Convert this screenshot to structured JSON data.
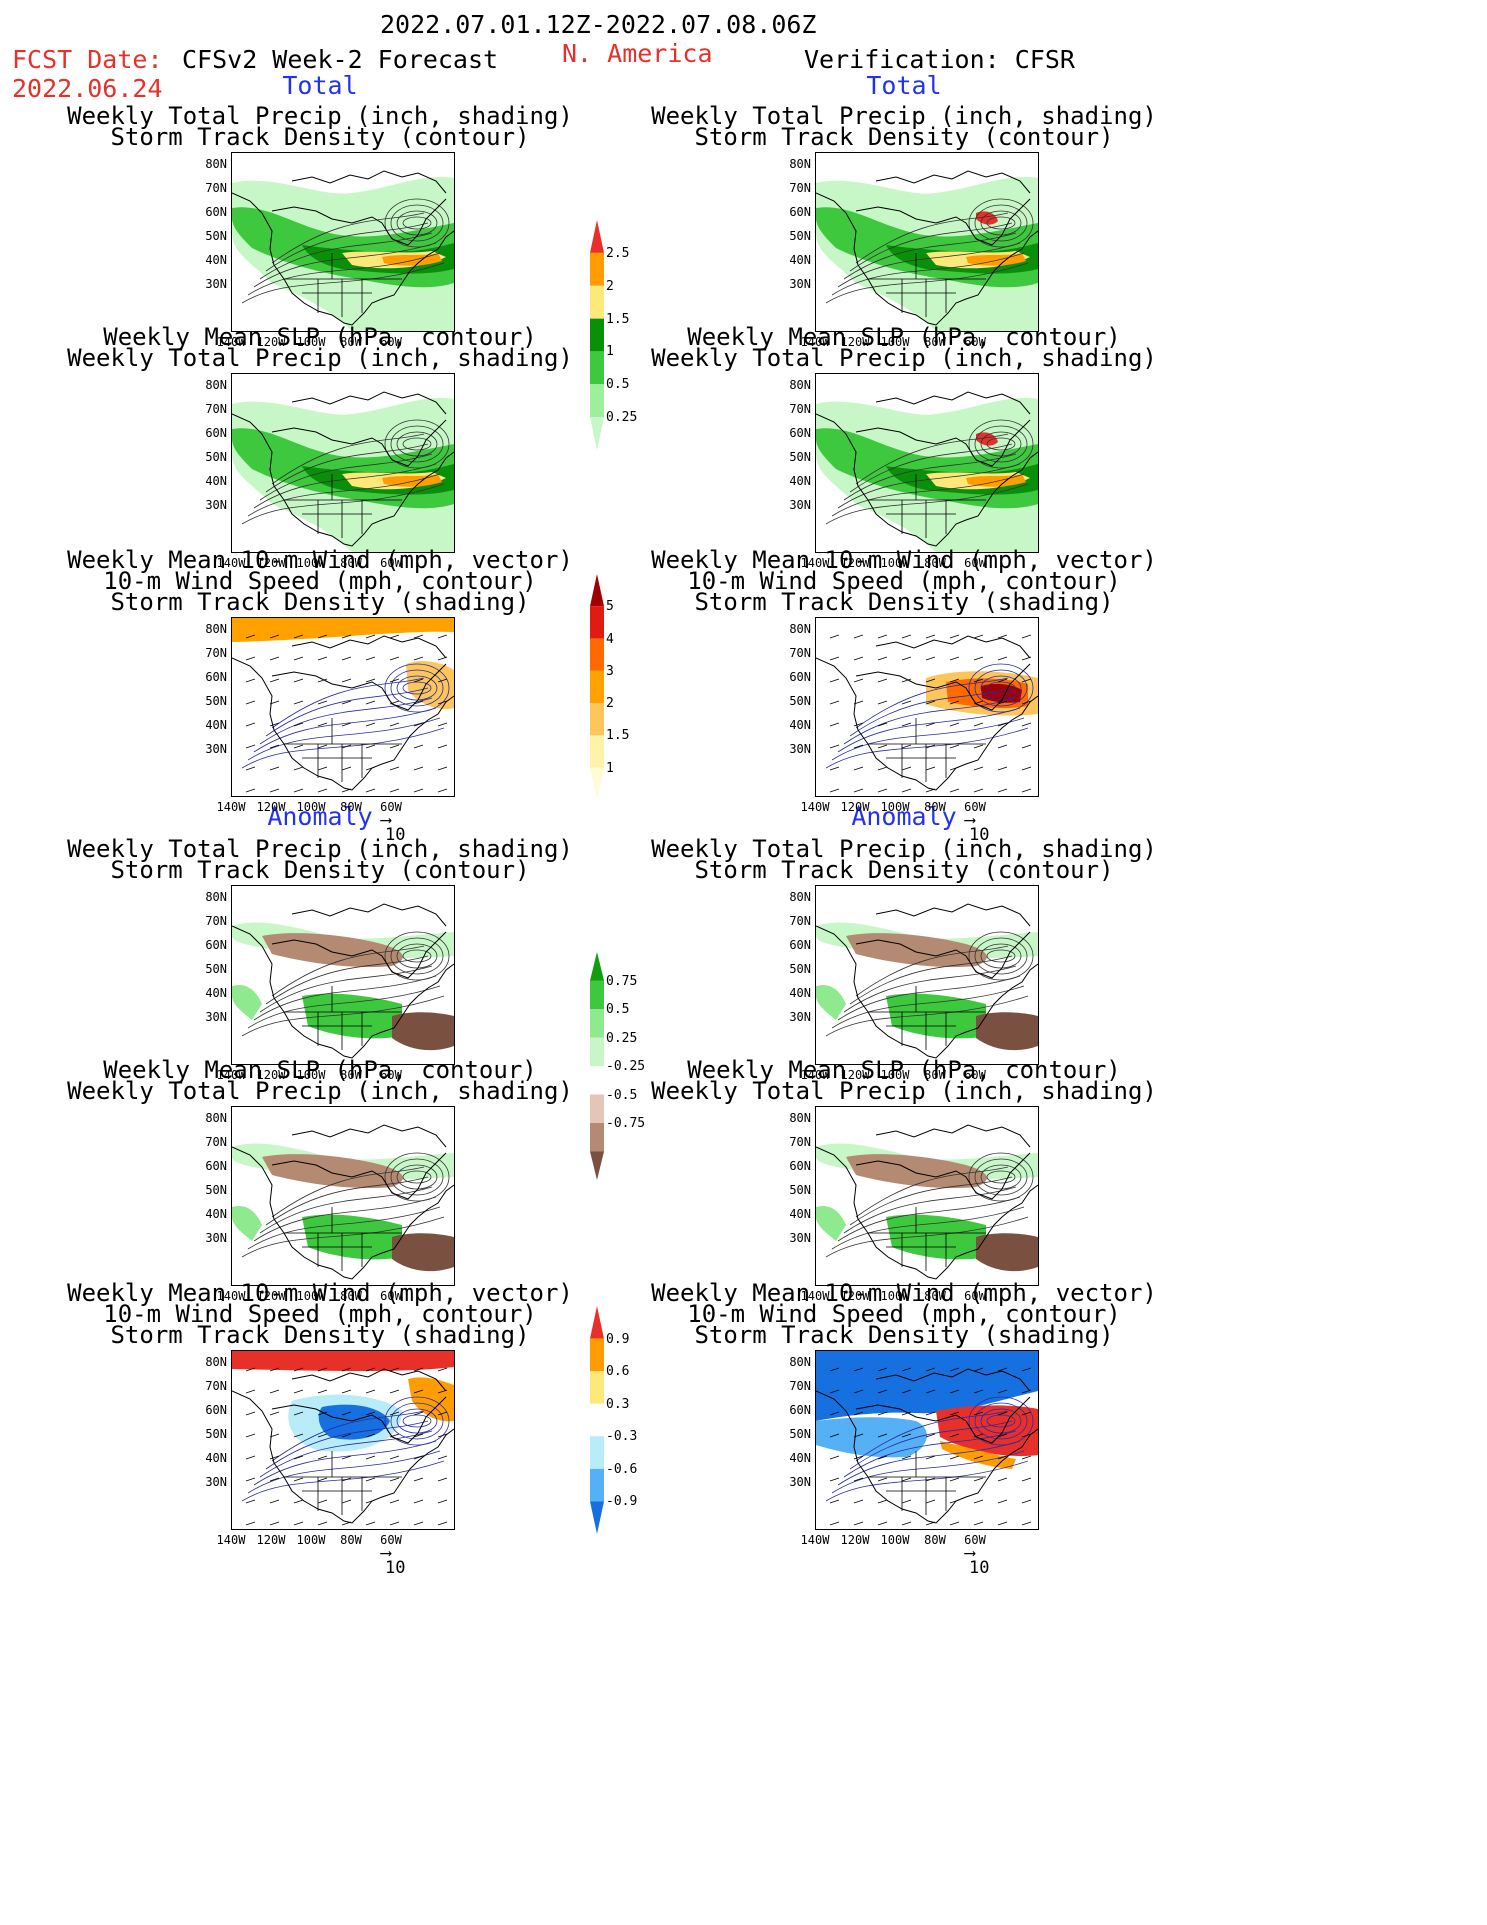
{
  "header": {
    "period": "2022.07.01.12Z-2022.07.08.06Z",
    "fcst_label": "FCST Date:",
    "fcst_date": "2022.06.24",
    "forecast_title": "CFSv2 Week-2 Forecast",
    "region": "N. America",
    "verification_title": "Verification: CFSR"
  },
  "sections": {
    "total": "Total",
    "anomaly": "Anomaly"
  },
  "panel_titles": {
    "precip_storm": [
      "Weekly Total Precip (inch, shading)",
      "Storm Track Density (contour)"
    ],
    "slp_precip": [
      "Weekly Mean SLP (hPa, contour)",
      "Weekly Total Precip (inch, shading)"
    ],
    "wind_storm": [
      "Weekly Mean 10-m Wind (mph, vector)",
      "10-m Wind Speed (mph, contour)",
      "Storm Track Density (shading)"
    ]
  },
  "axes": {
    "lat_labels": [
      "80N",
      "70N",
      "60N",
      "50N",
      "40N",
      "30N"
    ],
    "lon_labels": [
      "140W",
      "120W",
      "100W",
      "80W",
      "60W"
    ]
  },
  "vector_ref": "10",
  "colorbars": {
    "precip_total": {
      "labels": [
        "2.5",
        "2",
        "1.5",
        "1",
        "0.5",
        "0.25"
      ],
      "colors": [
        "#e8302a",
        "#ff9d00",
        "#fde87a",
        "#0a8f0a",
        "#3ec83e",
        "#9cf09c",
        "#c7f7c7"
      ]
    },
    "storm_total": {
      "labels": [
        "5",
        "4",
        "3",
        "2",
        "1.5",
        "1"
      ],
      "colors": [
        "#a00000",
        "#e01b12",
        "#ff6a00",
        "#ffa200",
        "#fdc65a",
        "#fef3a8",
        "#fffbd6"
      ]
    },
    "precip_anom": {
      "labels": [
        "0.75",
        "0.5",
        "0.25",
        "-0.25",
        "-0.5",
        "-0.75"
      ],
      "colors": [
        "#109d10",
        "#3ec83e",
        "#8fea8f",
        "#c7f7c7",
        "#ffffff",
        "#e3c6b6",
        "#b48a73",
        "#7a5040"
      ]
    },
    "storm_anom": {
      "labels": [
        "0.9",
        "0.6",
        "0.3",
        "-0.3",
        "-0.6",
        "-0.9"
      ],
      "colors": [
        "#e8302a",
        "#ff9d00",
        "#fde87a",
        "#ffffff",
        "#b8ecf8",
        "#55b0f5",
        "#1670e0"
      ]
    }
  },
  "colors": {
    "accent_red": "#e8302a",
    "accent_blue": "#2233ee"
  }
}
